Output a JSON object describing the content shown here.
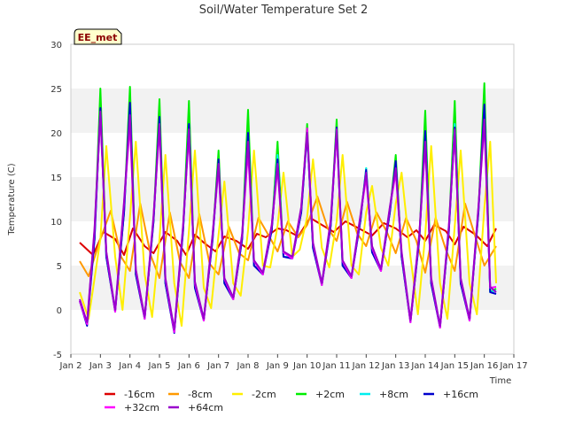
{
  "chart_data": {
    "type": "line",
    "title": "Soil/Water Temperature Set 2",
    "xlabel": "Time",
    "ylabel": "Temperature (C)",
    "badge": "EE_met",
    "ylim": [
      -5,
      30
    ],
    "yticks": [
      -5,
      0,
      5,
      10,
      15,
      20,
      25,
      30
    ],
    "xlim": [
      2,
      17
    ],
    "xticks": [
      {
        "v": 2,
        "label": "Jan 2"
      },
      {
        "v": 3,
        "label": "Jan 3"
      },
      {
        "v": 4,
        "label": "Jan 4"
      },
      {
        "v": 5,
        "label": "Jan 5"
      },
      {
        "v": 6,
        "label": "Jan 6"
      },
      {
        "v": 7,
        "label": "Jan 7"
      },
      {
        "v": 8,
        "label": "Jan 8"
      },
      {
        "v": 9,
        "label": "Jan 9"
      },
      {
        "v": 10,
        "label": "Jan 10"
      },
      {
        "v": 11,
        "label": "Jan 11"
      },
      {
        "v": 12,
        "label": "Jan 12"
      },
      {
        "v": 13,
        "label": "Jan 13"
      },
      {
        "v": 14,
        "label": "Jan 14"
      },
      {
        "v": 15,
        "label": "Jan 15"
      },
      {
        "v": 16,
        "label": "Jan 16"
      },
      {
        "v": 17,
        "label": "Jan 17"
      }
    ],
    "grid_bands": true,
    "legend_position": "bottom",
    "series": [
      {
        "name": "-16cm",
        "color": "#dd0000",
        "x": [
          2.3,
          2.75,
          3.1,
          3.5,
          3.8,
          4.1,
          4.5,
          4.8,
          5.2,
          5.6,
          5.9,
          6.2,
          6.5,
          6.9,
          7.2,
          7.6,
          8.0,
          8.3,
          8.6,
          9.0,
          9.3,
          9.7,
          10.1,
          10.5,
          10.9,
          11.3,
          11.7,
          12.2,
          12.6,
          13.0,
          13.4,
          13.7,
          14.0,
          14.3,
          14.7,
          15.0,
          15.3,
          15.7,
          16.1,
          16.4
        ],
        "y": [
          7.6,
          6.2,
          8.8,
          8.0,
          6.2,
          9.2,
          7.2,
          6.4,
          8.8,
          7.8,
          6.2,
          8.5,
          7.6,
          6.6,
          8.3,
          7.8,
          6.9,
          8.6,
          8.2,
          9.2,
          9.0,
          8.3,
          10.4,
          9.6,
          8.8,
          10.0,
          9.3,
          8.4,
          9.8,
          9.2,
          8.2,
          9.0,
          7.8,
          9.6,
          8.9,
          7.4,
          9.4,
          8.5,
          7.2,
          9.2
        ]
      },
      {
        "name": "-8cm",
        "color": "#ff9900",
        "x": [
          2.3,
          2.6,
          3.0,
          3.35,
          3.7,
          4.0,
          4.35,
          4.7,
          5.0,
          5.35,
          5.7,
          6.0,
          6.35,
          6.7,
          7.0,
          7.35,
          7.7,
          8.0,
          8.35,
          8.7,
          9.0,
          9.35,
          9.7,
          10.0,
          10.35,
          10.7,
          11.0,
          11.35,
          11.7,
          12.0,
          12.35,
          12.7,
          13.0,
          13.35,
          13.7,
          14.0,
          14.35,
          14.7,
          15.0,
          15.35,
          15.7,
          16.0,
          16.4
        ],
        "y": [
          5.5,
          3.8,
          8.0,
          11.2,
          6.0,
          4.4,
          12.0,
          6.2,
          3.6,
          11.0,
          5.4,
          3.6,
          10.8,
          5.2,
          4.0,
          9.4,
          6.4,
          5.6,
          10.4,
          8.4,
          6.6,
          10.0,
          8.2,
          9.6,
          12.8,
          9.2,
          7.8,
          12.2,
          8.6,
          7.2,
          11.0,
          8.8,
          6.4,
          10.4,
          7.8,
          4.2,
          10.4,
          6.8,
          4.4,
          12.0,
          8.2,
          5.0,
          7.2
        ]
      },
      {
        "name": "-2cm",
        "color": "#ffee00",
        "x": [
          2.3,
          2.6,
          3.0,
          3.2,
          3.5,
          3.75,
          4.0,
          4.2,
          4.5,
          4.75,
          5.0,
          5.2,
          5.5,
          5.75,
          6.0,
          6.2,
          6.5,
          6.75,
          7.0,
          7.2,
          7.5,
          7.75,
          8.0,
          8.2,
          8.5,
          8.75,
          9.0,
          9.2,
          9.5,
          9.75,
          10.0,
          10.2,
          10.5,
          10.75,
          11.0,
          11.2,
          11.5,
          11.75,
          12.0,
          12.2,
          12.5,
          12.75,
          13.0,
          13.2,
          13.5,
          13.75,
          14.0,
          14.2,
          14.5,
          14.75,
          15.0,
          15.2,
          15.5,
          15.75,
          16.0,
          16.2,
          16.4
        ],
        "y": [
          2.0,
          -1.0,
          8.0,
          18.5,
          6.0,
          0.0,
          10.5,
          19.0,
          4.0,
          -0.8,
          8.0,
          17.5,
          3.0,
          -1.8,
          9.0,
          18.0,
          2.5,
          0.2,
          8.5,
          14.5,
          3.0,
          1.6,
          9.0,
          18.0,
          5.0,
          4.8,
          9.5,
          15.5,
          6.0,
          6.8,
          10.5,
          17.0,
          7.0,
          4.8,
          10.0,
          17.5,
          5.0,
          4.0,
          11.0,
          14.0,
          7.0,
          5.0,
          12.0,
          15.5,
          6.0,
          -0.5,
          8.5,
          18.5,
          3.0,
          -1.0,
          9.5,
          18.0,
          3.0,
          -0.5,
          11.5,
          19.0,
          3.0
        ]
      },
      {
        "name": "+2cm",
        "color": "#00ee00",
        "x": [
          2.3,
          2.55,
          2.8,
          3.0,
          3.2,
          3.5,
          3.8,
          4.0,
          4.2,
          4.5,
          4.8,
          5.0,
          5.2,
          5.5,
          5.8,
          6.0,
          6.2,
          6.5,
          6.8,
          7.0,
          7.2,
          7.5,
          7.8,
          8.0,
          8.2,
          8.5,
          8.8,
          9.0,
          9.2,
          9.5,
          9.8,
          10.0,
          10.2,
          10.5,
          10.8,
          11.0,
          11.2,
          11.5,
          11.8,
          12.0,
          12.2,
          12.5,
          12.8,
          13.0,
          13.2,
          13.5,
          13.8,
          14.0,
          14.2,
          14.5,
          14.8,
          15.0,
          15.2,
          15.5,
          15.8,
          16.0,
          16.2,
          16.4
        ],
        "y": [
          1.0,
          -1.5,
          8.0,
          25.0,
          6.0,
          0.0,
          11.0,
          25.2,
          4.0,
          -0.8,
          10.0,
          23.8,
          3.0,
          -2.4,
          9.0,
          23.6,
          2.5,
          -1.0,
          8.0,
          18.0,
          3.0,
          1.3,
          8.0,
          22.6,
          5.0,
          4.2,
          9.0,
          19.0,
          6.0,
          6.0,
          11.0,
          21.0,
          7.0,
          3.0,
          9.5,
          21.5,
          5.0,
          3.8,
          10.0,
          16.0,
          6.5,
          4.6,
          11.0,
          17.5,
          6.0,
          -1.2,
          8.0,
          22.5,
          3.0,
          -1.8,
          9.0,
          23.6,
          3.0,
          -1.0,
          11.0,
          25.6,
          2.0,
          2.4
        ]
      },
      {
        "name": "+8cm",
        "color": "#00eeee",
        "x": [
          2.3,
          2.55,
          2.8,
          3.0,
          3.2,
          3.5,
          3.8,
          4.0,
          4.2,
          4.5,
          4.8,
          5.0,
          5.2,
          5.5,
          5.8,
          6.0,
          6.2,
          6.5,
          6.8,
          7.0,
          7.2,
          7.5,
          7.8,
          8.0,
          8.2,
          8.5,
          8.8,
          9.0,
          9.2,
          9.5,
          9.8,
          10.0,
          10.2,
          10.5,
          10.8,
          11.0,
          11.2,
          11.5,
          11.8,
          12.0,
          12.2,
          12.5,
          12.8,
          13.0,
          13.2,
          13.5,
          13.8,
          14.0,
          14.2,
          14.5,
          14.8,
          15.0,
          15.2,
          15.5,
          15.8,
          16.0,
          16.2,
          16.4
        ],
        "y": [
          1.0,
          -1.5,
          8.0,
          22.5,
          6.0,
          0.0,
          11.0,
          23.0,
          4.0,
          -0.8,
          10.0,
          21.5,
          3.0,
          -2.4,
          9.0,
          21.0,
          2.5,
          -1.0,
          8.0,
          16.5,
          3.0,
          1.3,
          8.0,
          20.0,
          5.0,
          4.2,
          9.0,
          17.5,
          6.0,
          6.0,
          11.0,
          20.0,
          7.0,
          3.0,
          9.5,
          20.5,
          5.0,
          3.8,
          10.0,
          16.0,
          6.5,
          4.6,
          11.0,
          16.5,
          6.0,
          -1.2,
          8.0,
          20.0,
          3.0,
          -1.8,
          9.0,
          21.0,
          3.0,
          -1.0,
          11.0,
          22.5,
          2.0,
          2.2
        ]
      },
      {
        "name": "+16cm",
        "color": "#0000cc",
        "x": [
          2.3,
          2.55,
          2.8,
          3.0,
          3.2,
          3.5,
          3.8,
          4.0,
          4.2,
          4.5,
          4.8,
          5.0,
          5.2,
          5.5,
          5.8,
          6.0,
          6.2,
          6.5,
          6.8,
          7.0,
          7.2,
          7.5,
          7.8,
          8.0,
          8.2,
          8.5,
          8.8,
          9.0,
          9.2,
          9.5,
          9.8,
          10.0,
          10.2,
          10.5,
          10.8,
          11.0,
          11.2,
          11.5,
          11.8,
          12.0,
          12.2,
          12.5,
          12.8,
          13.0,
          13.2,
          13.5,
          13.8,
          14.0,
          14.2,
          14.5,
          14.8,
          15.0,
          15.2,
          15.5,
          15.8,
          16.0,
          16.2,
          16.4
        ],
        "y": [
          1.0,
          -1.8,
          8.0,
          22.8,
          6.0,
          -0.2,
          11.0,
          23.4,
          4.0,
          -1.0,
          10.0,
          21.8,
          3.0,
          -2.6,
          9.0,
          21.0,
          2.5,
          -1.2,
          8.0,
          17.0,
          3.0,
          1.2,
          8.0,
          20.0,
          5.0,
          4.0,
          9.0,
          17.0,
          6.0,
          5.8,
          11.0,
          20.0,
          7.0,
          2.8,
          9.5,
          20.6,
          5.0,
          3.6,
          10.0,
          15.8,
          6.5,
          4.4,
          11.0,
          16.8,
          6.0,
          -1.4,
          8.0,
          20.2,
          3.0,
          -2.0,
          9.0,
          20.6,
          3.0,
          -1.2,
          11.0,
          23.2,
          2.0,
          1.8
        ]
      },
      {
        "name": "+32cm",
        "color": "#ff00ff",
        "x": [
          2.3,
          2.55,
          2.8,
          3.0,
          3.2,
          3.5,
          3.8,
          4.0,
          4.2,
          4.5,
          4.8,
          5.0,
          5.2,
          5.5,
          5.8,
          6.0,
          6.2,
          6.5,
          6.8,
          7.0,
          7.2,
          7.5,
          7.8,
          8.0,
          8.2,
          8.5,
          8.8,
          9.0,
          9.2,
          9.5,
          9.8,
          10.0,
          10.2,
          10.5,
          10.8,
          11.0,
          11.2,
          11.5,
          11.8,
          12.0,
          12.2,
          12.5,
          12.8,
          13.0,
          13.2,
          13.5,
          13.8,
          14.0,
          14.2,
          14.5,
          14.8,
          15.0,
          15.2,
          15.5,
          15.8,
          16.0,
          16.2,
          16.4
        ],
        "y": [
          1.0,
          -1.6,
          9.0,
          22.0,
          6.5,
          -0.2,
          12.0,
          21.0,
          4.5,
          -1.0,
          10.5,
          20.5,
          3.5,
          -2.5,
          9.5,
          20.0,
          3.0,
          -1.2,
          8.5,
          16.0,
          3.5,
          1.2,
          8.5,
          18.0,
          5.5,
          4.0,
          9.5,
          16.0,
          6.5,
          5.8,
          11.5,
          20.5,
          7.5,
          2.8,
          10.0,
          20.0,
          5.5,
          3.6,
          10.5,
          15.0,
          7.0,
          4.4,
          11.5,
          15.5,
          6.5,
          -1.4,
          8.5,
          18.5,
          3.5,
          -2.0,
          9.5,
          20.0,
          3.5,
          -1.2,
          11.5,
          21.0,
          2.5,
          2.6
        ]
      },
      {
        "name": "+64cm",
        "color": "#9900cc",
        "x": [
          2.3,
          2.55,
          2.8,
          3.0,
          3.2,
          3.5,
          3.8,
          4.0,
          4.2,
          4.5,
          4.8,
          5.0,
          5.2,
          5.5,
          5.8,
          6.0,
          6.2,
          6.5,
          6.8,
          7.0,
          7.2,
          7.5,
          7.8,
          8.0,
          8.2,
          8.5,
          8.8,
          9.0,
          9.2,
          9.5,
          9.8,
          10.0,
          10.2,
          10.5,
          10.8,
          11.0,
          11.2,
          11.5,
          11.8,
          12.0,
          12.2,
          12.5,
          12.8,
          13.0,
          13.2,
          13.5,
          13.8,
          14.0,
          14.2,
          14.5,
          14.8,
          15.0,
          15.2,
          15.5,
          15.8,
          16.0,
          16.2,
          16.4
        ],
        "y": [
          1.2,
          -1.4,
          9.2,
          22.4,
          6.6,
          0.0,
          12.2,
          22.0,
          4.6,
          -0.8,
          10.6,
          21.0,
          3.6,
          -2.2,
          9.6,
          20.4,
          3.2,
          -1.0,
          8.6,
          16.5,
          3.6,
          1.4,
          8.6,
          19.0,
          5.6,
          4.2,
          9.6,
          16.5,
          6.6,
          6.0,
          11.6,
          20.0,
          7.6,
          3.0,
          10.2,
          20.4,
          5.6,
          3.8,
          10.6,
          15.5,
          7.2,
          4.6,
          11.6,
          16.0,
          6.6,
          -1.2,
          8.6,
          19.0,
          3.6,
          -1.8,
          9.6,
          20.4,
          3.6,
          -1.0,
          11.6,
          21.5,
          2.6,
          2.0
        ]
      }
    ]
  }
}
